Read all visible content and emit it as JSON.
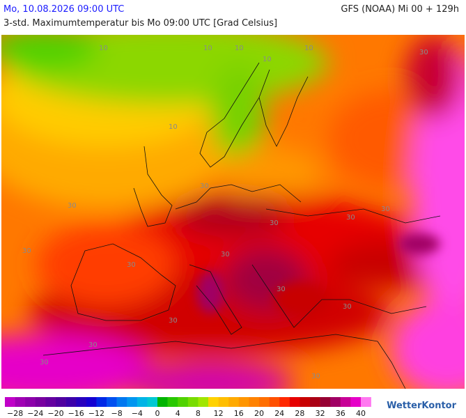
{
  "header": {
    "date": "Mo, 10.08.2026 09:00 UTC",
    "model": "GFS (NOAA) Mi 00 + 129h",
    "subtitle": "3-std. Maximumtemperatur bis Mo 09:00 UTC [Grad Celsius]"
  },
  "map": {
    "contour_labels": [
      "10",
      "10",
      "10",
      "10",
      "10",
      "10",
      "30",
      "30",
      "30",
      "30",
      "30",
      "30",
      "30",
      "30",
      "30",
      "30",
      "30",
      "30",
      "30",
      "30",
      "30"
    ]
  },
  "legend": {
    "colors": [
      "#c000c8",
      "#a000b4",
      "#8c00aa",
      "#7800a0",
      "#6400a0",
      "#5000a0",
      "#3c00aa",
      "#2800be",
      "#1400d2",
      "#0028e6",
      "#0050f0",
      "#0078f0",
      "#0096f0",
      "#00b4e6",
      "#00c8d2",
      "#00b400",
      "#28c800",
      "#50d200",
      "#78dc00",
      "#a0e600",
      "#ffd200",
      "#ffbe00",
      "#ffaa00",
      "#ff9600",
      "#ff8200",
      "#ff6e00",
      "#ff5000",
      "#ff2800",
      "#e60000",
      "#c80000",
      "#aa0014",
      "#960032",
      "#a00064",
      "#c80096",
      "#e600c8",
      "#ff78f0"
    ],
    "labels": [
      "−28",
      "−24",
      "−20",
      "−16",
      "−12",
      "−8",
      "−4",
      "0",
      "4",
      "8",
      "12",
      "16",
      "20",
      "24",
      "28",
      "32",
      "36",
      "40"
    ]
  },
  "logo": "WetterKontor"
}
